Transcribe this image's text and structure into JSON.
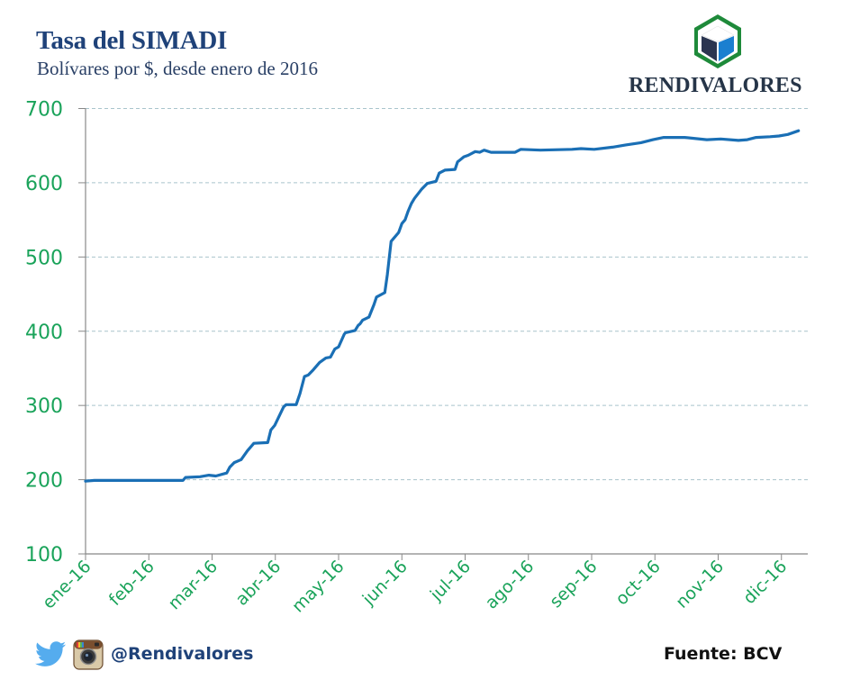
{
  "header": {
    "title": "Tasa del SIMADI",
    "subtitle": "Bolívares por $, desde enero de 2016"
  },
  "logo": {
    "name": "RENDIVALORES",
    "icon": "hexagon-cube-logo",
    "colors": {
      "hex": "#1e8a3a",
      "cube_dark": "#2b3550",
      "cube_light": "#1b7fd0"
    }
  },
  "footer": {
    "social_icons": [
      "twitter-icon",
      "instagram-icon"
    ],
    "handle": "@Rendivalores",
    "source": "Fuente: BCV"
  },
  "colors": {
    "line": "#1a6fb5",
    "axis_labels": "#1aa35a",
    "grid": "#a9c4cc",
    "title": "#1f4279"
  },
  "chart_data": {
    "type": "line",
    "title": "Tasa del SIMADI",
    "subtitle": "Bolívares por $, desde enero de 2016",
    "xlabel": "",
    "ylabel": "",
    "ylim": [
      100,
      700
    ],
    "yticks": [
      100,
      200,
      300,
      400,
      500,
      600,
      700
    ],
    "xticks": [
      "ene-16",
      "feb-16",
      "mar-16",
      "abr-16",
      "may-16",
      "jun-16",
      "jul-16",
      "ago-16",
      "sep-16",
      "oct-16",
      "nov-16",
      "dic-16"
    ],
    "xlim_months": [
      0,
      11.4
    ],
    "grid": "horizontal dashed",
    "legend": "none",
    "series": [
      {
        "name": "SIMADI",
        "x_month_index": [
          0.0,
          0.14,
          1.54,
          1.58,
          1.81,
          1.95,
          2.06,
          2.23,
          2.28,
          2.35,
          2.46,
          2.56,
          2.66,
          2.88,
          2.93,
          2.99,
          3.13,
          3.17,
          3.33,
          3.39,
          3.46,
          3.52,
          3.6,
          3.7,
          3.8,
          3.87,
          3.94,
          4.0,
          4.09,
          4.11,
          4.26,
          4.31,
          4.34,
          4.38,
          4.48,
          4.56,
          4.6,
          4.73,
          4.77,
          4.83,
          4.87,
          4.95,
          5.0,
          5.05,
          5.1,
          5.15,
          5.2,
          5.31,
          5.4,
          5.54,
          5.59,
          5.68,
          5.84,
          5.88,
          5.98,
          6.05,
          6.16,
          6.23,
          6.3,
          6.41,
          6.79,
          6.88,
          7.19,
          7.69,
          7.83,
          8.04,
          8.33,
          8.54,
          8.78,
          8.97,
          9.14,
          9.47,
          9.82,
          10.04,
          10.32,
          10.46,
          10.6,
          10.82,
          10.96,
          11.1,
          11.27
        ],
        "values": [
          198,
          199,
          199,
          203,
          204,
          206,
          205,
          209,
          217,
          223,
          227,
          239,
          249,
          250,
          267,
          273,
          298,
          301,
          301,
          316,
          339,
          341,
          348,
          358,
          364,
          365,
          376,
          379,
          396,
          398,
          401,
          408,
          410,
          415,
          419,
          436,
          446,
          452,
          476,
          521,
          525,
          533,
          545,
          550,
          562,
          572,
          579,
          591,
          599,
          602,
          613,
          617,
          618,
          628,
          635,
          637,
          642,
          641,
          644,
          641,
          641,
          645,
          644,
          645,
          646,
          645,
          648,
          651,
          654,
          658,
          661,
          661,
          658,
          659,
          657,
          658,
          661,
          662,
          663,
          665,
          670
        ]
      }
    ]
  }
}
